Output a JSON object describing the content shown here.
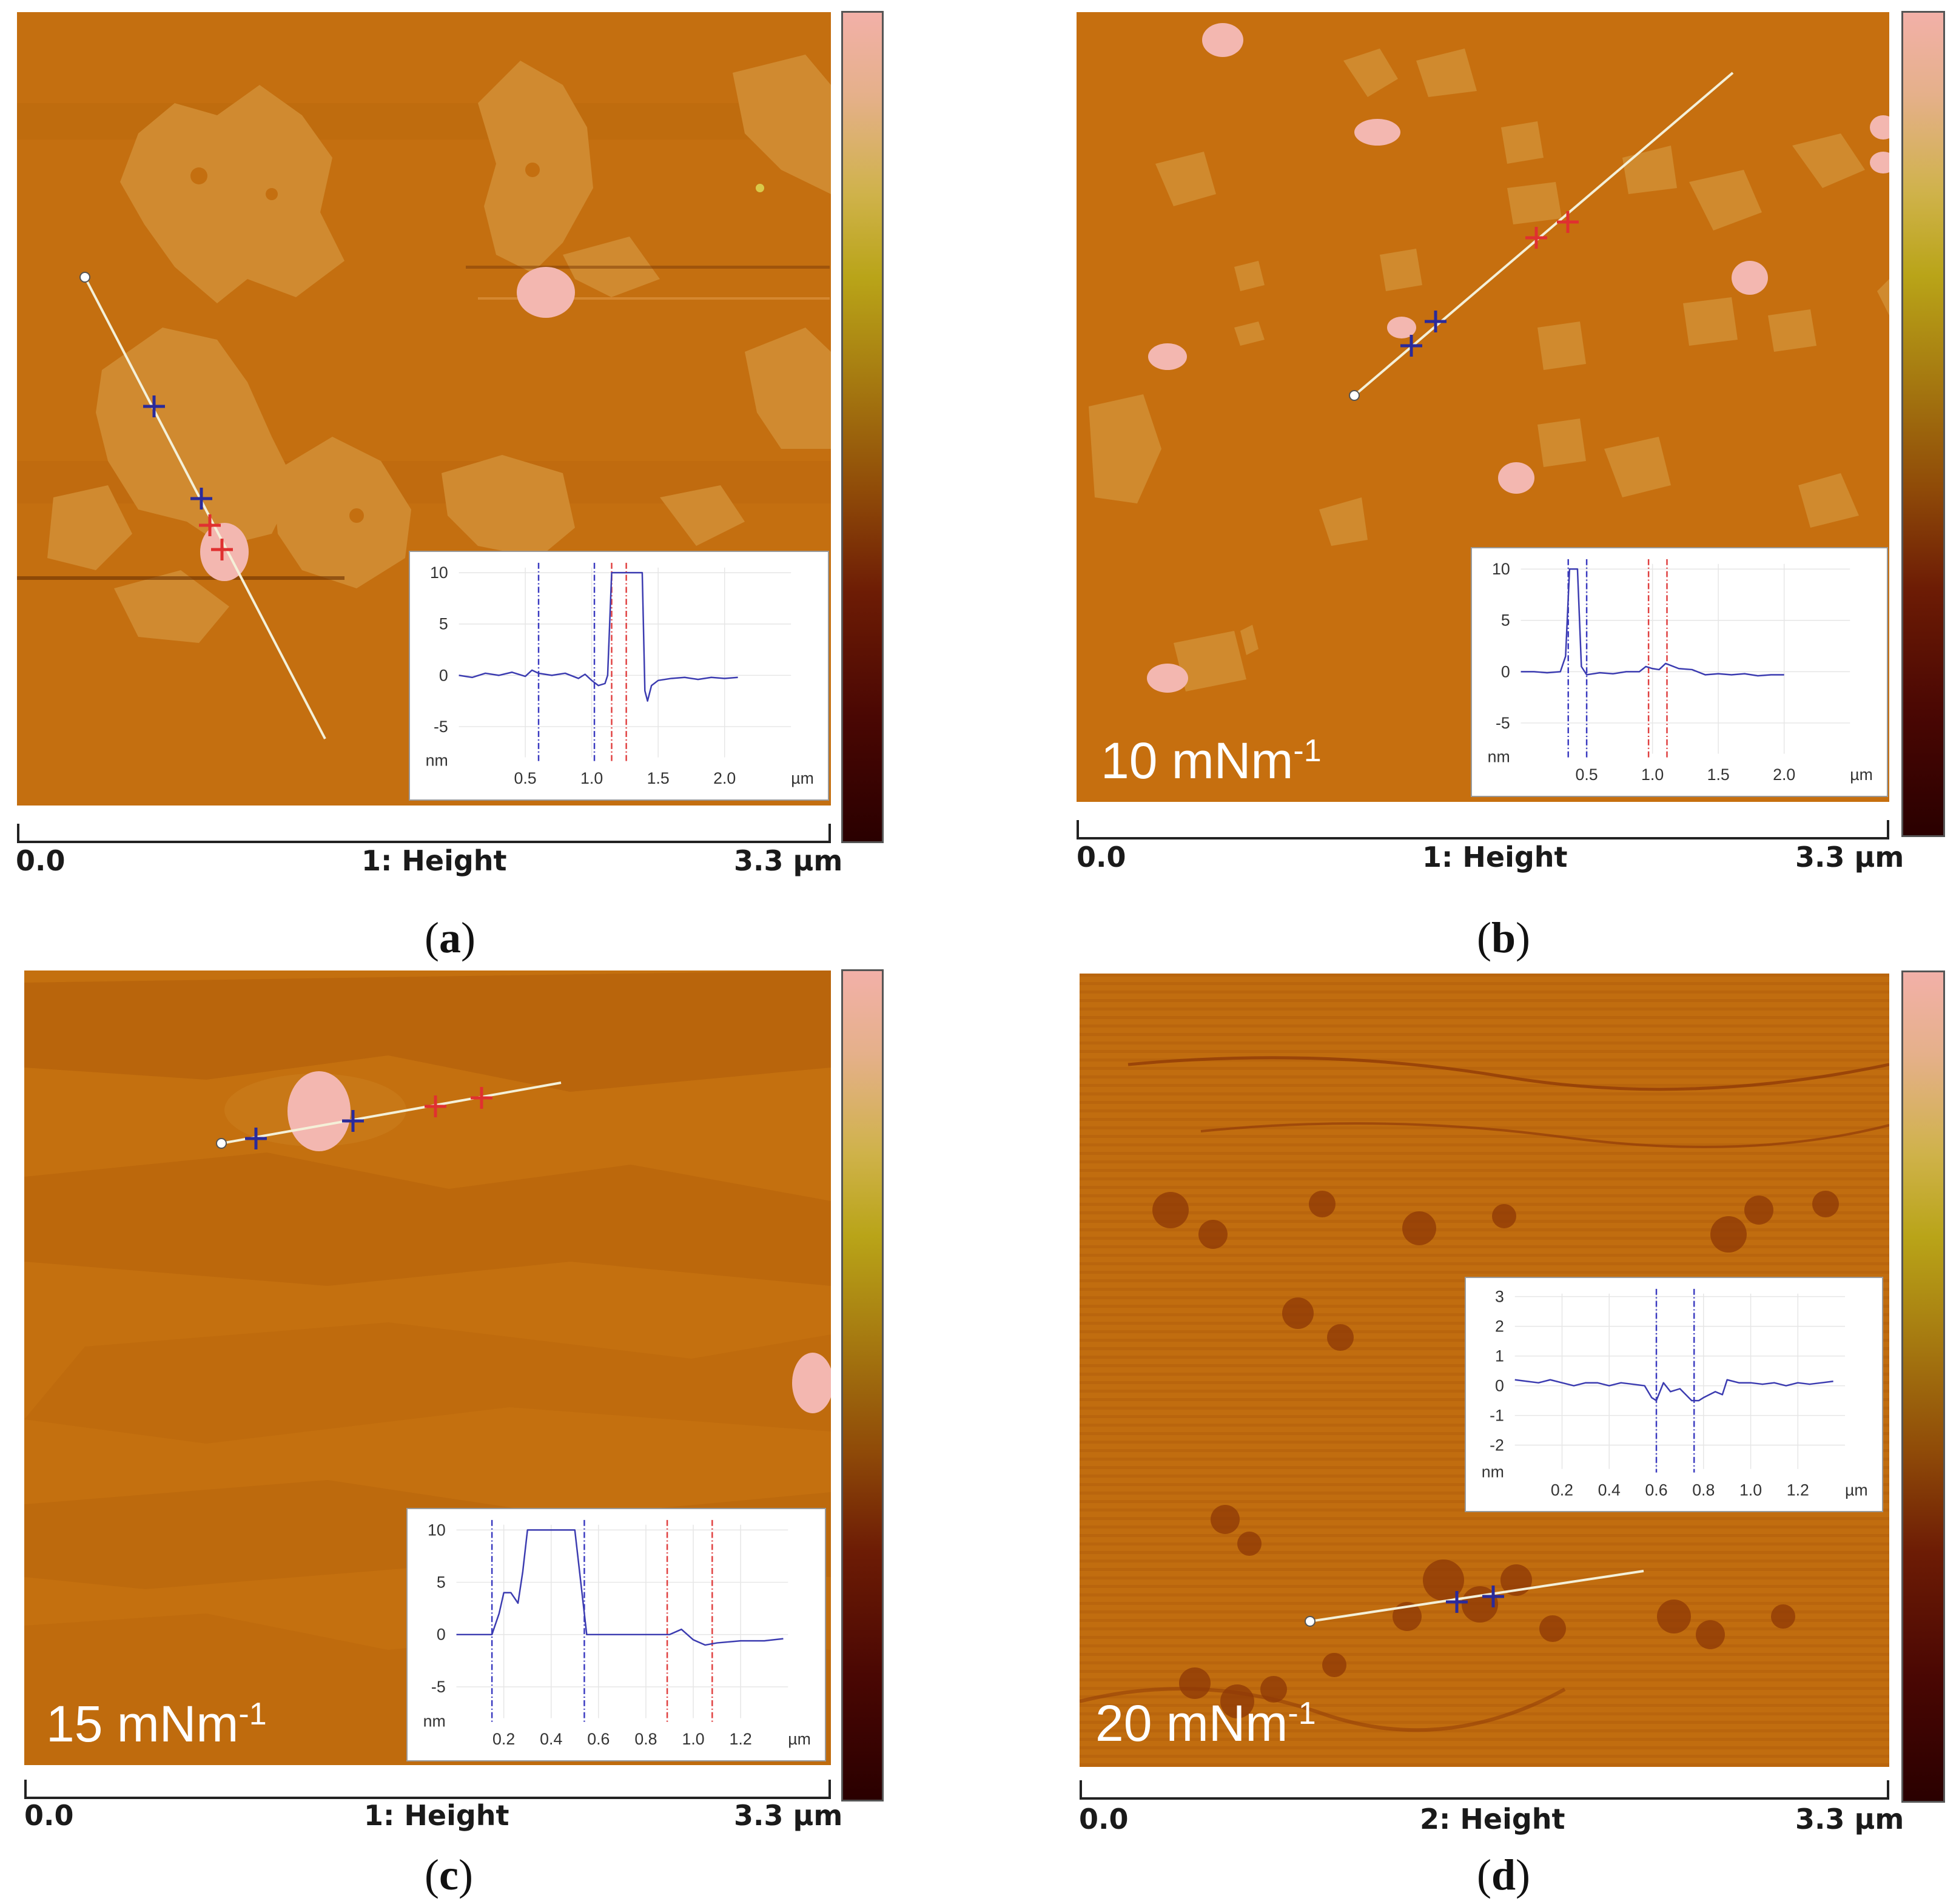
{
  "panels": [
    {
      "id": "a",
      "caption": "a",
      "pressure_label": "",
      "scale": {
        "start": "0.0",
        "channel": "1: Height",
        "end": "3.3 µm"
      },
      "inset": {
        "yticks": [
          "10",
          "5",
          "0",
          "-5"
        ],
        "yunit": "nm",
        "xticks": [
          "0.5",
          "1.0",
          "1.5",
          "2.0"
        ],
        "xunit": "µm"
      }
    },
    {
      "id": "b",
      "caption": "b",
      "pressure_label": "10 mNm",
      "pressure_sup": "-1",
      "scale": {
        "start": "0.0",
        "channel": "1: Height",
        "end": "3.3 µm"
      },
      "inset": {
        "yticks": [
          "10",
          "5",
          "0",
          "-5"
        ],
        "yunit": "nm",
        "xticks": [
          "0.5",
          "1.0",
          "1.5",
          "2.0"
        ],
        "xunit": "µm"
      }
    },
    {
      "id": "c",
      "caption": "c",
      "pressure_label": "15 mNm",
      "pressure_sup": "-1",
      "scale": {
        "start": "0.0",
        "channel": "1: Height",
        "end": "3.3 µm"
      },
      "inset": {
        "yticks": [
          "10",
          "5",
          "0",
          "-5"
        ],
        "yunit": "nm",
        "xticks": [
          "0.2",
          "0.4",
          "0.6",
          "0.8",
          "1.0",
          "1.2"
        ],
        "xunit": "µm"
      }
    },
    {
      "id": "d",
      "caption": "d",
      "pressure_label": "20 mNm",
      "pressure_sup": "-1",
      "scale": {
        "start": "0.0",
        "channel": "2: Height",
        "end": "3.3 µm"
      },
      "inset": {
        "yticks": [
          "3",
          "2",
          "1",
          "0",
          "-1",
          "-2"
        ],
        "yunit": "nm",
        "xticks": [
          "0.2",
          "0.4",
          "0.6",
          "0.8",
          "1.0",
          "1.2"
        ],
        "xunit": "µm"
      }
    }
  ],
  "colors": {
    "substrate": "#c5700f",
    "substrate_dark": "#b25f0b",
    "domain": "#d08a2e",
    "aggregate": "#f2b4b0",
    "line": "#f4f0d8",
    "blue_marker": "#2a2a9a",
    "red_marker": "#e03030",
    "profile": "#3b3bb0",
    "colorbar_top": "#f2b0a8",
    "colorbar_bottom": "#2a0000"
  },
  "chart_data": [
    {
      "type": "line",
      "panel": "a",
      "title": "",
      "xlabel": "µm",
      "ylabel": "nm",
      "xlim": [
        0,
        2.5
      ],
      "ylim": [
        -8,
        10.5
      ],
      "x": [
        0.0,
        0.1,
        0.2,
        0.3,
        0.4,
        0.5,
        0.55,
        0.6,
        0.7,
        0.8,
        0.9,
        0.95,
        1.0,
        1.05,
        1.1,
        1.12,
        1.15,
        1.2,
        1.25,
        1.3,
        1.35,
        1.38,
        1.4,
        1.42,
        1.45,
        1.5,
        1.6,
        1.7,
        1.8,
        1.9,
        2.0,
        2.1
      ],
      "values": [
        0,
        -0.2,
        0.2,
        0,
        0.3,
        -0.1,
        0.5,
        0.2,
        0,
        0.2,
        -0.3,
        0.1,
        -0.5,
        -1,
        -0.8,
        0,
        10,
        10,
        10,
        10,
        10,
        10,
        -1.5,
        -2.5,
        -1,
        -0.5,
        -0.3,
        -0.2,
        -0.4,
        -0.2,
        -0.3,
        -0.2
      ],
      "markers_blue": [
        0.6,
        1.02
      ],
      "markers_red": [
        1.15,
        1.26
      ]
    },
    {
      "type": "line",
      "panel": "b",
      "title": "",
      "xlabel": "µm",
      "ylabel": "nm",
      "xlim": [
        0,
        2.5
      ],
      "ylim": [
        -8,
        10.5
      ],
      "x": [
        0.0,
        0.1,
        0.2,
        0.3,
        0.34,
        0.37,
        0.4,
        0.43,
        0.46,
        0.5,
        0.6,
        0.7,
        0.8,
        0.9,
        0.95,
        1.0,
        1.05,
        1.1,
        1.2,
        1.3,
        1.4,
        1.5,
        1.6,
        1.7,
        1.8,
        1.9,
        2.0
      ],
      "values": [
        0,
        0,
        -0.1,
        0,
        1.5,
        10,
        10,
        10,
        0.5,
        -0.3,
        -0.1,
        -0.2,
        0,
        0,
        0.5,
        0.3,
        0.2,
        0.8,
        0.3,
        0.2,
        -0.3,
        -0.2,
        -0.3,
        -0.2,
        -0.4,
        -0.3,
        -0.3
      ],
      "markers_blue": [
        0.36,
        0.5
      ],
      "markers_red": [
        0.97,
        1.11
      ]
    },
    {
      "type": "line",
      "panel": "c",
      "title": "",
      "xlabel": "µm",
      "ylabel": "nm",
      "xlim": [
        0,
        1.4
      ],
      "ylim": [
        -8,
        10.5
      ],
      "x": [
        0.0,
        0.05,
        0.1,
        0.15,
        0.18,
        0.2,
        0.23,
        0.26,
        0.28,
        0.3,
        0.35,
        0.4,
        0.45,
        0.5,
        0.53,
        0.55,
        0.6,
        0.7,
        0.8,
        0.9,
        0.95,
        1.0,
        1.05,
        1.1,
        1.2,
        1.3,
        1.38
      ],
      "values": [
        0,
        0,
        0,
        0,
        2,
        4,
        4,
        3,
        6,
        10,
        10,
        10,
        10,
        10,
        4,
        0,
        0,
        0,
        0,
        0,
        0.5,
        -0.5,
        -1,
        -0.8,
        -0.6,
        -0.6,
        -0.4
      ],
      "markers_blue": [
        0.15,
        0.54
      ],
      "markers_red": [
        0.89,
        1.08
      ]
    },
    {
      "type": "line",
      "panel": "d",
      "title": "",
      "xlabel": "µm",
      "ylabel": "nm",
      "xlim": [
        0,
        1.4
      ],
      "ylim": [
        -2.8,
        3.1
      ],
      "x": [
        0.0,
        0.05,
        0.1,
        0.15,
        0.2,
        0.25,
        0.3,
        0.35,
        0.4,
        0.45,
        0.5,
        0.55,
        0.58,
        0.6,
        0.63,
        0.66,
        0.7,
        0.75,
        0.78,
        0.8,
        0.85,
        0.88,
        0.9,
        0.95,
        1.0,
        1.05,
        1.1,
        1.15,
        1.2,
        1.25,
        1.3,
        1.35
      ],
      "values": [
        0.2,
        0.15,
        0.1,
        0.2,
        0.1,
        0,
        0.1,
        0.1,
        0,
        0.1,
        0.05,
        0,
        -0.4,
        -0.5,
        0.1,
        -0.2,
        -0.1,
        -0.5,
        -0.5,
        -0.4,
        -0.2,
        -0.3,
        0.2,
        0.1,
        0.1,
        0.05,
        0.1,
        0.0,
        0.1,
        0.05,
        0.1,
        0.15
      ],
      "markers_blue": [
        0.6,
        0.76
      ],
      "markers_red": []
    }
  ]
}
